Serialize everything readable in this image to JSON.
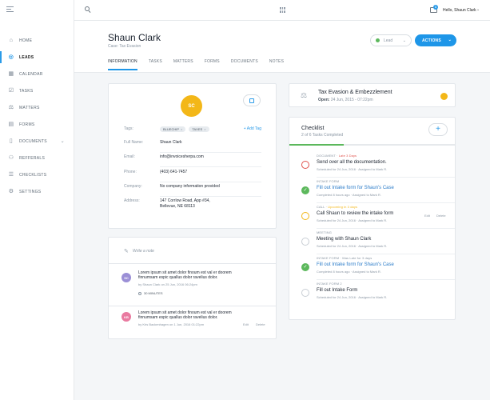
{
  "topbar": {
    "greeting": "Hello, Shaun Clark",
    "mail_count": "1"
  },
  "sidebar": {
    "items": [
      {
        "label": "HOME",
        "icon": "home-icon"
      },
      {
        "label": "LEADS",
        "icon": "leads-icon"
      },
      {
        "label": "CALENDAR",
        "icon": "calendar-icon"
      },
      {
        "label": "TASKS",
        "icon": "tasks-icon"
      },
      {
        "label": "MATTERS",
        "icon": "matters-icon"
      },
      {
        "label": "FORMS",
        "icon": "forms-icon"
      },
      {
        "label": "DOCUMENTS",
        "icon": "documents-icon"
      },
      {
        "label": "REFFERALS",
        "icon": "referrals-icon"
      },
      {
        "label": "CHECKLISTS",
        "icon": "checklists-icon"
      },
      {
        "label": "SETTINGS",
        "icon": "settings-icon"
      }
    ],
    "active": "LEADS"
  },
  "header": {
    "title": "Shaun Clark",
    "subtitle": "Case: Tax Evasion",
    "stage_value": "Lead",
    "actions_label": "ACTIONS",
    "tabs": [
      "INFORMATION",
      "TASKS",
      "MATTERS",
      "FORMS",
      "DOCUMENTS",
      "NOTES"
    ]
  },
  "info": {
    "avatar_initials": "SC",
    "tags_label": "Tags:",
    "tags": [
      "BLUECHIP",
      "TAXES"
    ],
    "add_tag": "+ Add Tag",
    "full_name_label": "Full Name:",
    "full_name": "Shaun Clark",
    "email_label": "Email:",
    "email": "info@invoicesherpa.com",
    "phone_label": "Phone:",
    "phone": "(403) 641-7457",
    "company_label": "Company:",
    "company": "No company information provided",
    "address_label": "Address:",
    "address_line1": "147 Corrlow Road, App #34,",
    "address_line2": "Bellevue, NE 68113"
  },
  "notes": {
    "placeholder": "Write a note",
    "items": [
      {
        "initials": "SC",
        "color": "#9b8fd6",
        "text_line1": "Lorem ipsum sit amet dolor finoum est val er doorem",
        "text_line2": "finnumsam espic quallus dolor ravelius dolor.",
        "meta": "by Shaun Clark on 25 Jun, 2016 06:24pm",
        "duration": "30 MINUTES"
      },
      {
        "initials": "KB",
        "color": "#e97aa0",
        "text_line1": "Lorem ipsum sit amet dolor finoum est val er doorem",
        "text_line2": "finnumsam espic quallus dolor ravelius dolor.",
        "meta": "by Kris Backenhagen on 1 Jun, 2016 01:22pm",
        "edit": "Edit",
        "delete": "Delete"
      }
    ]
  },
  "case": {
    "title": "Tax Evasion & Embezzlement",
    "opened_label": "Open:",
    "opened_value": "24 Jun, 2015 - 07:22pm",
    "status_color": "#f3b718"
  },
  "checklist": {
    "title": "Checklist",
    "subtitle": "2 of 6 Tasks Completed",
    "progress": 0.33,
    "tasks": [
      {
        "label": "DOCUMENT",
        "status_text": "Late 3 Days",
        "status_kind": "red",
        "title": "Send over all the documentation.",
        "meta": "Scheduled for 24 Jun, 2016  ·  Assigned to Mark R.",
        "state": "overdue"
      },
      {
        "label": "INTAKE FORM",
        "status_text": "",
        "status_kind": "",
        "title": "Fill out Intake form for Shaun's Case",
        "meta": "Completed 8 hours ago  ·  Assigned to Mark R.",
        "state": "done"
      },
      {
        "label": "CALL",
        "status_text": "Upcoming in 3 days",
        "status_kind": "orange",
        "title": "Call Shaun to review the intake form",
        "meta": "Scheduled for 24 Jun, 2016  ·  Assigned to Mark R.",
        "state": "upcoming",
        "edit": "Edit",
        "delete": "Delete"
      },
      {
        "label": "MEETING",
        "status_text": "",
        "status_kind": "",
        "title": "Meeting with Shaun Clark",
        "meta": "Scheduled for 24 Jun, 2016  ·  Assigned to Mark R.",
        "state": "todo"
      },
      {
        "label": "INTAKE FORM",
        "status_text": "Was Late for 3 days",
        "status_kind": "plain",
        "title": "Fill out Intake form for Shaun's Case",
        "meta": "Completed 8 hours ago  ·  Assigned to Mark R.",
        "state": "done"
      },
      {
        "label": "INTAKE FORM 2",
        "status_text": "",
        "status_kind": "",
        "title": "Fill out Intake Form",
        "meta": "Scheduled for 24 Jun, 2016  ·  Assigned to Mark R.",
        "state": "todo"
      }
    ]
  }
}
